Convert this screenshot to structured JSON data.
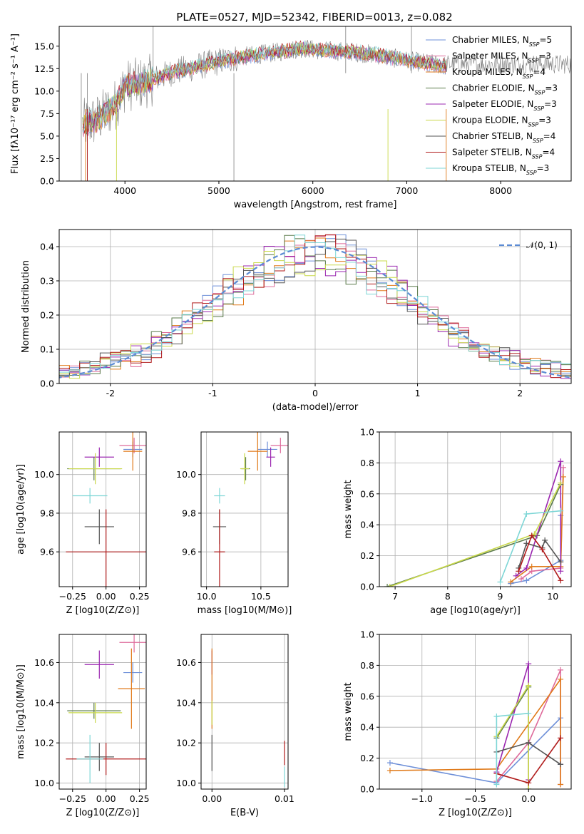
{
  "title": "PLATE=0527, MJD=52342, FIBERID=0013, z=0.082",
  "colors": {
    "chabrier_miles": "#6d8fd8",
    "salpeter_miles": "#de6a9a",
    "kroupa_miles": "#e07a1a",
    "chabrier_elodie": "#5a7a4a",
    "salpeter_elodie": "#9b27b0",
    "kroupa_elodie": "#c9d84a",
    "chabrier_stelib": "#555555",
    "salpeter_stelib": "#b01b1b",
    "kroupa_stelib": "#7dd6d6",
    "spectrum": "#808080",
    "normal": "#5b8bd4"
  },
  "models": [
    {
      "key": "chabrier_miles",
      "label": "Chabrier MILES, N",
      "n": "=5"
    },
    {
      "key": "salpeter_miles",
      "label": "Salpeter MILES, N",
      "n": "=3"
    },
    {
      "key": "kroupa_miles",
      "label": "Kroupa MILES, N",
      "n": "=4"
    },
    {
      "key": "chabrier_elodie",
      "label": "Chabrier ELODIE, N",
      "n": "=3"
    },
    {
      "key": "salpeter_elodie",
      "label": "Salpeter ELODIE, N",
      "n": "=3"
    },
    {
      "key": "kroupa_elodie",
      "label": "Kroupa ELODIE, N",
      "n": "=3"
    },
    {
      "key": "chabrier_stelib",
      "label": "Chabrier STELIB, N",
      "n": "=4"
    },
    {
      "key": "salpeter_stelib",
      "label": "Salpeter STELIB, N",
      "n": "=4"
    },
    {
      "key": "kroupa_stelib",
      "label": "Kroupa STELIB, N",
      "n": "=3"
    }
  ],
  "chart_data": [
    {
      "type": "line",
      "xlabel": "wavelength [Angstrom, rest frame]",
      "ylabel": "Flux [fλ10⁻¹⁷ erg cm⁻² s⁻¹ A⁻¹]",
      "xlim": [
        3300,
        8750
      ],
      "ylim": [
        0,
        17.2
      ],
      "xticks": [
        4000,
        5000,
        6000,
        7000,
        8000
      ],
      "yticks": [
        0.0,
        2.5,
        5.0,
        7.5,
        10.0,
        12.5,
        15.0
      ],
      "continuum": {
        "x": [
          3550,
          3700,
          3900,
          4000,
          4200,
          4500,
          4800,
          5000,
          5300,
          5600,
          5900,
          6100,
          6400,
          6700,
          7000,
          7300,
          7420
        ],
        "y": [
          6.2,
          6.8,
          8.5,
          10.6,
          10.9,
          12.1,
          12.8,
          13.3,
          13.9,
          14.3,
          14.8,
          14.5,
          14.4,
          14.0,
          13.4,
          13.0,
          12.8
        ]
      }
    },
    {
      "type": "line",
      "xlabel": "(data-model)/error",
      "ylabel": "Normed distribution",
      "xlim": [
        -2.5,
        2.5
      ],
      "ylim": [
        0,
        0.45
      ],
      "xticks": [
        -2,
        -1,
        0,
        1,
        2
      ],
      "yticks": [
        0.0,
        0.1,
        0.2,
        0.3,
        0.4
      ],
      "legend": "𝒩(0, 1)",
      "bin_width": 0.1,
      "normal": {
        "mu": 0,
        "sigma": 1
      }
    },
    {
      "type": "scatter",
      "xlabel": "Z [log10(Z/Z⊙)]",
      "ylabel": "age  [log10(age/yr)]",
      "xlim": [
        -0.35,
        0.3
      ],
      "ylim": [
        9.42,
        10.22
      ],
      "xticks": [
        -0.25,
        0.0,
        0.25
      ],
      "xticklabels": [
        "−0.25",
        "0.00",
        "0.25"
      ],
      "yticks": [
        9.6,
        9.8,
        10.0
      ],
      "points": [
        {
          "key": "chabrier_miles",
          "x": 0.2,
          "xerr": 0.07,
          "y": 10.13,
          "yerr": 0.04
        },
        {
          "key": "salpeter_miles",
          "x": 0.21,
          "xerr": 0.11,
          "y": 10.15,
          "yerr": 0.04
        },
        {
          "key": "kroupa_miles",
          "x": 0.2,
          "xerr": 0.07,
          "y": 10.12,
          "yerr": 0.1
        },
        {
          "key": "chabrier_elodie",
          "x": -0.09,
          "xerr": 0.2,
          "y": 10.03,
          "yerr": 0.06
        },
        {
          "key": "salpeter_elodie",
          "x": -0.05,
          "xerr": 0.11,
          "y": 10.09,
          "yerr": 0.05
        },
        {
          "key": "kroupa_elodie",
          "x": -0.08,
          "xerr": 0.2,
          "y": 10.03,
          "yerr": 0.08
        },
        {
          "key": "chabrier_stelib",
          "x": -0.05,
          "xerr": 0.11,
          "y": 9.73,
          "yerr": 0.09
        },
        {
          "key": "salpeter_stelib",
          "x": 0.0,
          "xerr": 0.3,
          "y": 9.6,
          "yerr": 0.22
        },
        {
          "key": "kroupa_stelib",
          "x": -0.12,
          "xerr": 0.13,
          "y": 9.89,
          "yerr": 0.04
        }
      ]
    },
    {
      "type": "scatter",
      "xlabel": "mass [log10(M/M⊙)]",
      "ylabel": "",
      "xlim": [
        9.95,
        10.75
      ],
      "ylim": [
        9.42,
        10.22
      ],
      "xticks": [
        10.0,
        10.5
      ],
      "xticklabels": [
        "10.0",
        "10.5"
      ],
      "yticks": [
        9.6,
        9.8,
        10.0
      ],
      "points": [
        {
          "key": "chabrier_miles",
          "x": 10.56,
          "xerr": 0.09,
          "y": 10.13,
          "yerr": 0.04
        },
        {
          "key": "salpeter_miles",
          "x": 10.68,
          "xerr": 0.09,
          "y": 10.15,
          "yerr": 0.04
        },
        {
          "key": "kroupa_miles",
          "x": 10.47,
          "xerr": 0.09,
          "y": 10.12,
          "yerr": 0.1
        },
        {
          "key": "chabrier_elodie",
          "x": 10.36,
          "xerr": 0.04,
          "y": 10.03,
          "yerr": 0.06
        },
        {
          "key": "salpeter_elodie",
          "x": 10.59,
          "xerr": 0.04,
          "y": 10.09,
          "yerr": 0.05
        },
        {
          "key": "kroupa_elodie",
          "x": 10.35,
          "xerr": 0.04,
          "y": 10.03,
          "yerr": 0.08
        },
        {
          "key": "chabrier_stelib",
          "x": 10.12,
          "xerr": 0.06,
          "y": 9.73,
          "yerr": 0.09
        },
        {
          "key": "salpeter_stelib",
          "x": 10.12,
          "xerr": 0.05,
          "y": 9.6,
          "yerr": 0.22
        },
        {
          "key": "kroupa_stelib",
          "x": 10.12,
          "xerr": 0.05,
          "y": 9.89,
          "yerr": 0.04
        }
      ]
    },
    {
      "type": "line",
      "xlabel": "age  [log10(age/yr)]",
      "ylabel": "mass weight",
      "xlim": [
        6.7,
        10.35
      ],
      "ylim": [
        0,
        1.0
      ],
      "xticks": [
        7,
        8,
        9,
        10
      ],
      "yticks": [
        0.0,
        0.2,
        0.4,
        0.6,
        0.8,
        1.0
      ],
      "series": [
        {
          "key": "chabrier_miles",
          "x": [
            9.2,
            9.5,
            10.15,
            10.15
          ],
          "y": [
            0.02,
            0.04,
            0.17,
            0.46
          ]
        },
        {
          "key": "salpeter_miles",
          "x": [
            9.4,
            9.6,
            10.15,
            10.2
          ],
          "y": [
            0.05,
            0.1,
            0.12,
            0.77
          ]
        },
        {
          "key": "kroupa_miles",
          "x": [
            9.2,
            9.6,
            10.15,
            10.2
          ],
          "y": [
            0.03,
            0.13,
            0.13,
            0.71
          ]
        },
        {
          "key": "chabrier_elodie",
          "x": [
            6.85,
            9.7,
            10.15
          ],
          "y": [
            0.0,
            0.33,
            0.66
          ]
        },
        {
          "key": "salpeter_elodie",
          "x": [
            9.3,
            9.5,
            10.15,
            10.15
          ],
          "y": [
            0.07,
            0.12,
            0.81,
            0.1
          ]
        },
        {
          "key": "kroupa_elodie",
          "x": [
            6.9,
            9.65,
            10.15
          ],
          "y": [
            0.0,
            0.34,
            0.67
          ]
        },
        {
          "key": "chabrier_stelib",
          "x": [
            9.35,
            9.5,
            9.8,
            9.85,
            10.15
          ],
          "y": [
            0.12,
            0.28,
            0.25,
            0.3,
            0.16
          ]
        },
        {
          "key": "salpeter_stelib",
          "x": [
            9.35,
            9.6,
            9.8,
            10.15
          ],
          "y": [
            0.1,
            0.33,
            0.24,
            0.04
          ]
        },
        {
          "key": "kroupa_stelib",
          "x": [
            9.0,
            9.5,
            10.15
          ],
          "y": [
            0.03,
            0.47,
            0.49
          ]
        }
      ]
    },
    {
      "type": "scatter",
      "xlabel": "Z [log10(Z/Z⊙)]",
      "ylabel": "mass [log10(M/M⊙)]",
      "xlim": [
        -0.35,
        0.3
      ],
      "ylim": [
        9.97,
        10.74
      ],
      "xticks": [
        -0.25,
        0.0,
        0.25
      ],
      "xticklabels": [
        "−0.25",
        "0.00",
        "0.25"
      ],
      "yticks": [
        10.0,
        10.2,
        10.4,
        10.6
      ],
      "points": [
        {
          "key": "chabrier_miles",
          "x": 0.2,
          "xerr": 0.07,
          "y": 10.55,
          "yerr": 0.05
        },
        {
          "key": "salpeter_miles",
          "x": 0.21,
          "xerr": 0.11,
          "y": 10.7,
          "yerr": 0.05
        },
        {
          "key": "kroupa_miles",
          "x": 0.19,
          "xerr": 0.1,
          "y": 10.47,
          "yerr": 0.2
        },
        {
          "key": "chabrier_elodie",
          "x": -0.09,
          "xerr": 0.2,
          "y": 10.36,
          "yerr": 0.04
        },
        {
          "key": "salpeter_elodie",
          "x": -0.05,
          "xerr": 0.11,
          "y": 10.59,
          "yerr": 0.07
        },
        {
          "key": "kroupa_elodie",
          "x": -0.08,
          "xerr": 0.2,
          "y": 10.35,
          "yerr": 0.05
        },
        {
          "key": "chabrier_stelib",
          "x": -0.05,
          "xerr": 0.11,
          "y": 10.13,
          "yerr": 0.07
        },
        {
          "key": "salpeter_stelib",
          "x": 0.0,
          "xerr": 0.3,
          "y": 10.12,
          "yerr": 0.08
        },
        {
          "key": "kroupa_stelib",
          "x": -0.12,
          "xerr": 0.1,
          "y": 10.12,
          "yerr": 0.12
        }
      ]
    },
    {
      "type": "scatter",
      "xlabel": "E(B-V)",
      "ylabel": "",
      "xlim": [
        -0.0015,
        0.0105
      ],
      "ylim": [
        9.97,
        10.74
      ],
      "xticks": [
        0.0,
        0.01
      ],
      "xticklabels": [
        "0.00",
        "0.01"
      ],
      "yticks": [
        10.0,
        10.2,
        10.4,
        10.6
      ],
      "points": [
        {
          "key": "salpeter_elodie",
          "x": 0.0,
          "xerr": 0,
          "y": 10.6,
          "yerr": 0.06
        },
        {
          "key": "kroupa_miles",
          "x": 0.0,
          "xerr": 0,
          "y": 10.47,
          "yerr": 0.2
        },
        {
          "key": "kroupa_elodie",
          "x": 0.0,
          "xerr": 0,
          "y": 10.35,
          "yerr": 0.06
        },
        {
          "key": "chabrier_stelib",
          "x": 0.0,
          "xerr": 0,
          "y": 10.15,
          "yerr": 0.09
        },
        {
          "key": "salpeter_stelib",
          "x": 0.01,
          "xerr": 0,
          "y": 10.15,
          "yerr": 0.06
        },
        {
          "key": "kroupa_stelib",
          "x": 0.01,
          "xerr": 0,
          "y": 10.03,
          "yerr": 0.05
        }
      ]
    },
    {
      "type": "line",
      "xlabel": "Z [log10(Z/Z⊙)]",
      "ylabel": "mass weight",
      "xlim": [
        -1.4,
        0.4
      ],
      "ylim": [
        0,
        1.0
      ],
      "xticks": [
        -1.0,
        -0.5,
        0.0
      ],
      "xticklabels": [
        "−1.0",
        "−0.5",
        "0.0"
      ],
      "yticks": [
        0.0,
        0.2,
        0.4,
        0.6,
        0.8,
        1.0
      ],
      "series": [
        {
          "key": "chabrier_miles",
          "x": [
            -1.3,
            -0.3,
            0.3,
            0.3
          ],
          "y": [
            0.17,
            0.04,
            0.46,
            0.16
          ]
        },
        {
          "key": "salpeter_miles",
          "x": [
            -0.3,
            0.0,
            0.3,
            0.3
          ],
          "y": [
            0.05,
            0.3,
            0.77,
            0.03
          ]
        },
        {
          "key": "kroupa_miles",
          "x": [
            -1.3,
            -0.3,
            0.3,
            0.3
          ],
          "y": [
            0.12,
            0.13,
            0.71,
            0.03
          ]
        },
        {
          "key": "chabrier_elodie",
          "x": [
            -0.3,
            0.0,
            0.0
          ],
          "y": [
            0.33,
            0.66,
            0.0
          ]
        },
        {
          "key": "salpeter_elodie",
          "x": [
            -0.3,
            0.0,
            0.0
          ],
          "y": [
            0.11,
            0.81,
            0.06
          ]
        },
        {
          "key": "kroupa_elodie",
          "x": [
            -0.3,
            0.0,
            0.0
          ],
          "y": [
            0.34,
            0.67,
            0.0
          ]
        },
        {
          "key": "chabrier_stelib",
          "x": [
            -0.3,
            0.0,
            0.3
          ],
          "y": [
            0.24,
            0.3,
            0.16
          ]
        },
        {
          "key": "salpeter_stelib",
          "x": [
            -0.3,
            0.0,
            0.3
          ],
          "y": [
            0.1,
            0.04,
            0.33
          ]
        },
        {
          "key": "kroupa_stelib",
          "x": [
            -0.3,
            -0.3,
            0.0
          ],
          "y": [
            0.03,
            0.47,
            0.49
          ]
        }
      ]
    }
  ]
}
